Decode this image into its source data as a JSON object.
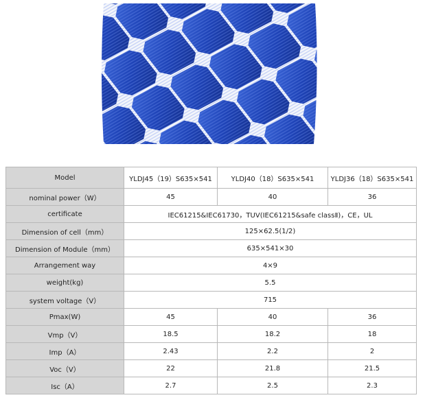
{
  "table": {
    "header": [
      "Model",
      "YLDJ45（19）S635×541",
      "YLDJ40（18）S635×541",
      "YLDJ36（18）S635×541"
    ],
    "rows": [
      [
        "nominal power（W）",
        "45",
        "40",
        "36"
      ],
      [
        "certificate",
        "IEC61215&IEC61730，TUV(IEC61215&safe classⅡ)，CE，UL"
      ],
      [
        "Dimension of cell（mm）",
        "125×62.5(1/2)"
      ],
      [
        "Dimension of Module（mm）",
        "635×541×30"
      ],
      [
        "Arrangement way",
        "4×9"
      ],
      [
        "weight(kg)",
        "5.5"
      ],
      [
        "system voltage（V）",
        "715"
      ],
      [
        "Pmax(W)",
        "45",
        "40",
        "36"
      ],
      [
        "Vmp（V）",
        "18.5",
        "18.2",
        "18"
      ],
      [
        "Imp（A）",
        "2.43",
        "2.2",
        "2"
      ],
      [
        "Voc（V）",
        "22",
        "21.8",
        "21.5"
      ],
      [
        "Isc（A）",
        "2.7",
        "2.5",
        "2.3"
      ]
    ]
  }
}
